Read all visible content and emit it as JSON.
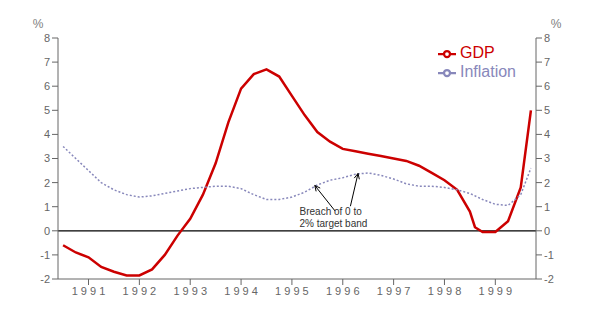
{
  "chart_data": {
    "type": "line",
    "y_label": "%",
    "y2_label": "%",
    "xlim": [
      1990.4,
      1999.8
    ],
    "xticks": [
      {
        "value": 1991,
        "label": "1 9 9 1"
      },
      {
        "value": 1992,
        "label": "1 9 9 2"
      },
      {
        "value": 1993,
        "label": "1 9 9 3"
      },
      {
        "value": 1994,
        "label": "1 9 9 4"
      },
      {
        "value": 1995,
        "label": "1 9 9 5"
      },
      {
        "value": 1996,
        "label": "1 9 9 6"
      },
      {
        "value": 1997,
        "label": "1 9 9 7"
      },
      {
        "value": 1998,
        "label": "1 9 9 8"
      },
      {
        "value": 1999,
        "label": "1 9 9 9"
      }
    ],
    "ylim": [
      -2,
      8
    ],
    "yticks": [
      -2,
      -1,
      0,
      1,
      2,
      3,
      4,
      5,
      6,
      7,
      8
    ],
    "y2lim": [
      -2,
      8
    ],
    "y2ticks": [
      -2,
      -1,
      0,
      1,
      2,
      3,
      4,
      5,
      6,
      7,
      8
    ],
    "series": [
      {
        "name": "GDP",
        "color": "#cc0000",
        "line_style": "solid",
        "x": [
          1990.5,
          1990.75,
          1991.0,
          1991.25,
          1991.5,
          1991.75,
          1992.0,
          1992.25,
          1992.5,
          1992.75,
          1993.0,
          1993.25,
          1993.5,
          1993.75,
          1994.0,
          1994.25,
          1994.5,
          1994.75,
          1995.0,
          1995.25,
          1995.5,
          1995.75,
          1996.0,
          1996.25,
          1996.5,
          1996.75,
          1997.0,
          1997.25,
          1997.5,
          1997.75,
          1998.0,
          1998.25,
          1998.5,
          1998.6,
          1998.75,
          1999.0,
          1999.25,
          1999.5,
          1999.7
        ],
        "values": [
          -0.6,
          -0.9,
          -1.1,
          -1.5,
          -1.7,
          -1.85,
          -1.85,
          -1.6,
          -1.0,
          -0.2,
          0.5,
          1.5,
          2.8,
          4.5,
          5.9,
          6.5,
          6.7,
          6.4,
          5.6,
          4.8,
          4.1,
          3.7,
          3.4,
          3.3,
          3.2,
          3.1,
          3.0,
          2.9,
          2.7,
          2.4,
          2.1,
          1.7,
          0.8,
          0.15,
          -0.05,
          -0.05,
          0.4,
          1.8,
          5.0
        ]
      },
      {
        "name": "Inflation",
        "color": "#8888bb",
        "line_style": "dotted",
        "x": [
          1990.5,
          1990.75,
          1991.0,
          1991.25,
          1991.5,
          1991.75,
          1992.0,
          1992.25,
          1992.5,
          1992.75,
          1993.0,
          1993.25,
          1993.5,
          1993.75,
          1994.0,
          1994.25,
          1994.5,
          1994.75,
          1995.0,
          1995.25,
          1995.5,
          1995.75,
          1996.0,
          1996.25,
          1996.5,
          1996.75,
          1997.0,
          1997.25,
          1997.5,
          1997.75,
          1998.0,
          1998.25,
          1998.5,
          1998.75,
          1999.0,
          1999.25,
          1999.5,
          1999.7
        ],
        "values": [
          3.5,
          3.0,
          2.5,
          2.0,
          1.7,
          1.5,
          1.4,
          1.45,
          1.55,
          1.65,
          1.75,
          1.8,
          1.85,
          1.85,
          1.75,
          1.5,
          1.3,
          1.3,
          1.4,
          1.6,
          1.9,
          2.1,
          2.2,
          2.35,
          2.4,
          2.3,
          2.15,
          1.95,
          1.85,
          1.85,
          1.8,
          1.7,
          1.55,
          1.3,
          1.1,
          1.05,
          1.5,
          2.6
        ]
      }
    ],
    "hlines": [
      0
    ],
    "annotations": [
      {
        "text": "Breach of 0 to\n2% target band",
        "x": 1995.15,
        "y": 0.05,
        "arrows": [
          {
            "from_x": 1995.85,
            "from_y": 0.82,
            "x": 1995.45,
            "y": 1.88
          },
          {
            "from_x": 1996.15,
            "from_y": 1.02,
            "x": 1996.3,
            "y": 2.38
          }
        ]
      }
    ],
    "legend": "upper right",
    "grid": false
  }
}
